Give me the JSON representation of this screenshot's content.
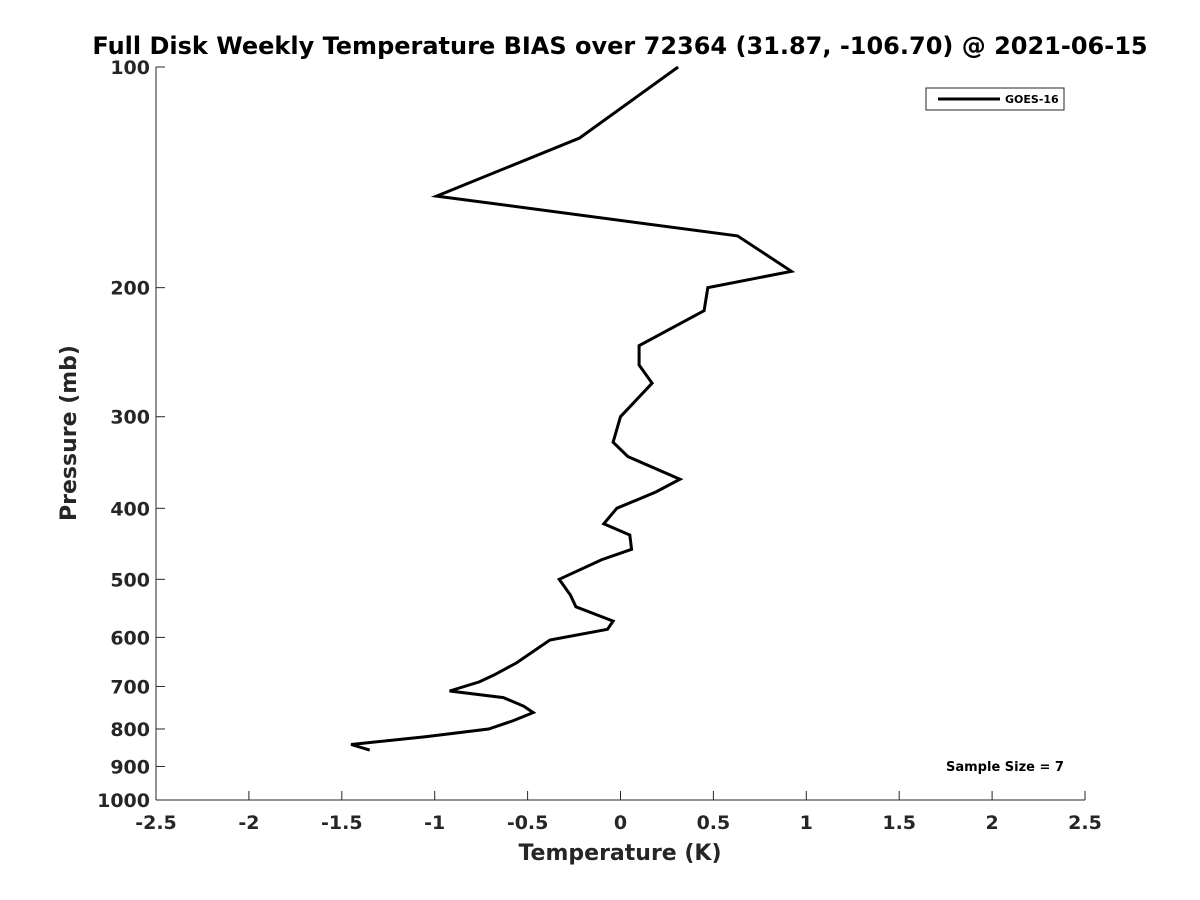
{
  "chart_data": {
    "type": "line",
    "title": "Full Disk Weekly Temperature BIAS over 72364 (31.87, -106.70) @ 2021-06-15",
    "xlabel": "Temperature (K)",
    "ylabel": "Pressure (mb)",
    "xlim": [
      -2.5,
      2.5
    ],
    "ylim": [
      100,
      1000
    ],
    "y_scale": "log",
    "y_reversed": true,
    "x_ticks": [
      "-2.5",
      "-2",
      "-1.5",
      "-1",
      "-0.5",
      "0",
      "0.5",
      "1",
      "1.5",
      "2",
      "2.5"
    ],
    "y_ticks": [
      "100",
      "200",
      "300",
      "400",
      "500",
      "600",
      "700",
      "800",
      "900",
      "1000"
    ],
    "grid": false,
    "legend_position": "top-right",
    "line_color": "#000000",
    "annotation": "Sample Size = 7",
    "series": [
      {
        "name": "GOES-16",
        "points": [
          {
            "x": 0.31,
            "y": 100
          },
          {
            "x": -0.22,
            "y": 125
          },
          {
            "x": -0.99,
            "y": 150
          },
          {
            "x": 0.63,
            "y": 170
          },
          {
            "x": 0.92,
            "y": 190
          },
          {
            "x": 0.47,
            "y": 200
          },
          {
            "x": 0.45,
            "y": 215
          },
          {
            "x": 0.1,
            "y": 240
          },
          {
            "x": 0.1,
            "y": 255
          },
          {
            "x": 0.17,
            "y": 270
          },
          {
            "x": 0.0,
            "y": 300
          },
          {
            "x": -0.04,
            "y": 325
          },
          {
            "x": 0.04,
            "y": 340
          },
          {
            "x": 0.32,
            "y": 365
          },
          {
            "x": 0.19,
            "y": 380
          },
          {
            "x": -0.02,
            "y": 400
          },
          {
            "x": -0.09,
            "y": 420
          },
          {
            "x": 0.05,
            "y": 435
          },
          {
            "x": 0.06,
            "y": 455
          },
          {
            "x": -0.1,
            "y": 470
          },
          {
            "x": -0.33,
            "y": 500
          },
          {
            "x": -0.27,
            "y": 525
          },
          {
            "x": -0.24,
            "y": 545
          },
          {
            "x": -0.04,
            "y": 570
          },
          {
            "x": -0.07,
            "y": 585
          },
          {
            "x": -0.38,
            "y": 605
          },
          {
            "x": -0.56,
            "y": 650
          },
          {
            "x": -0.68,
            "y": 675
          },
          {
            "x": -0.76,
            "y": 690
          },
          {
            "x": -0.92,
            "y": 710
          },
          {
            "x": -0.63,
            "y": 725
          },
          {
            "x": -0.52,
            "y": 745
          },
          {
            "x": -0.47,
            "y": 760
          },
          {
            "x": -0.58,
            "y": 780
          },
          {
            "x": -0.71,
            "y": 800
          },
          {
            "x": -1.05,
            "y": 820
          },
          {
            "x": -1.45,
            "y": 840
          },
          {
            "x": -1.35,
            "y": 855
          }
        ]
      }
    ]
  }
}
